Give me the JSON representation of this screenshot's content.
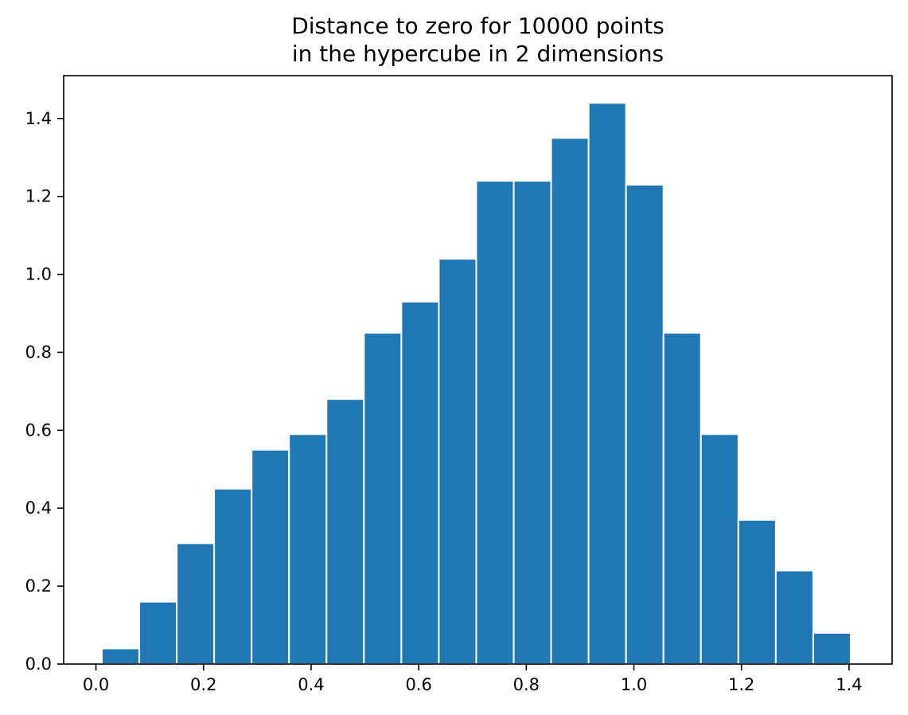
{
  "chart_data": {
    "type": "bar",
    "title": [
      "Distance to zero for 10000 points",
      "in the hypercube in 2 dimensions"
    ],
    "xlabel": "",
    "ylabel": "",
    "xlim": [
      -0.06,
      1.48
    ],
    "ylim": [
      0.0,
      1.51
    ],
    "xticks": [
      "0.0",
      "0.2",
      "0.4",
      "0.6",
      "0.8",
      "1.0",
      "1.2",
      "1.4"
    ],
    "yticks": [
      "0.0",
      "0.2",
      "0.4",
      "0.6",
      "0.8",
      "1.0",
      "1.2",
      "1.4"
    ],
    "grid": false,
    "bar_color": "#1f77b4",
    "edge_color": "#ffffff",
    "bins": {
      "left_edges": [
        0.011,
        0.0806,
        0.1502,
        0.2198,
        0.2894,
        0.359,
        0.4286,
        0.4982,
        0.5678,
        0.6374,
        0.707,
        0.7766,
        0.8462,
        0.9158,
        0.9854,
        1.055,
        1.1246,
        1.1942,
        1.2638,
        1.3334
      ],
      "width": 0.0696
    },
    "values": [
      0.04,
      0.16,
      0.31,
      0.45,
      0.55,
      0.59,
      0.68,
      0.85,
      0.93,
      1.04,
      1.24,
      1.24,
      1.35,
      1.44,
      1.23,
      0.85,
      0.59,
      0.37,
      0.24,
      0.08
    ]
  }
}
